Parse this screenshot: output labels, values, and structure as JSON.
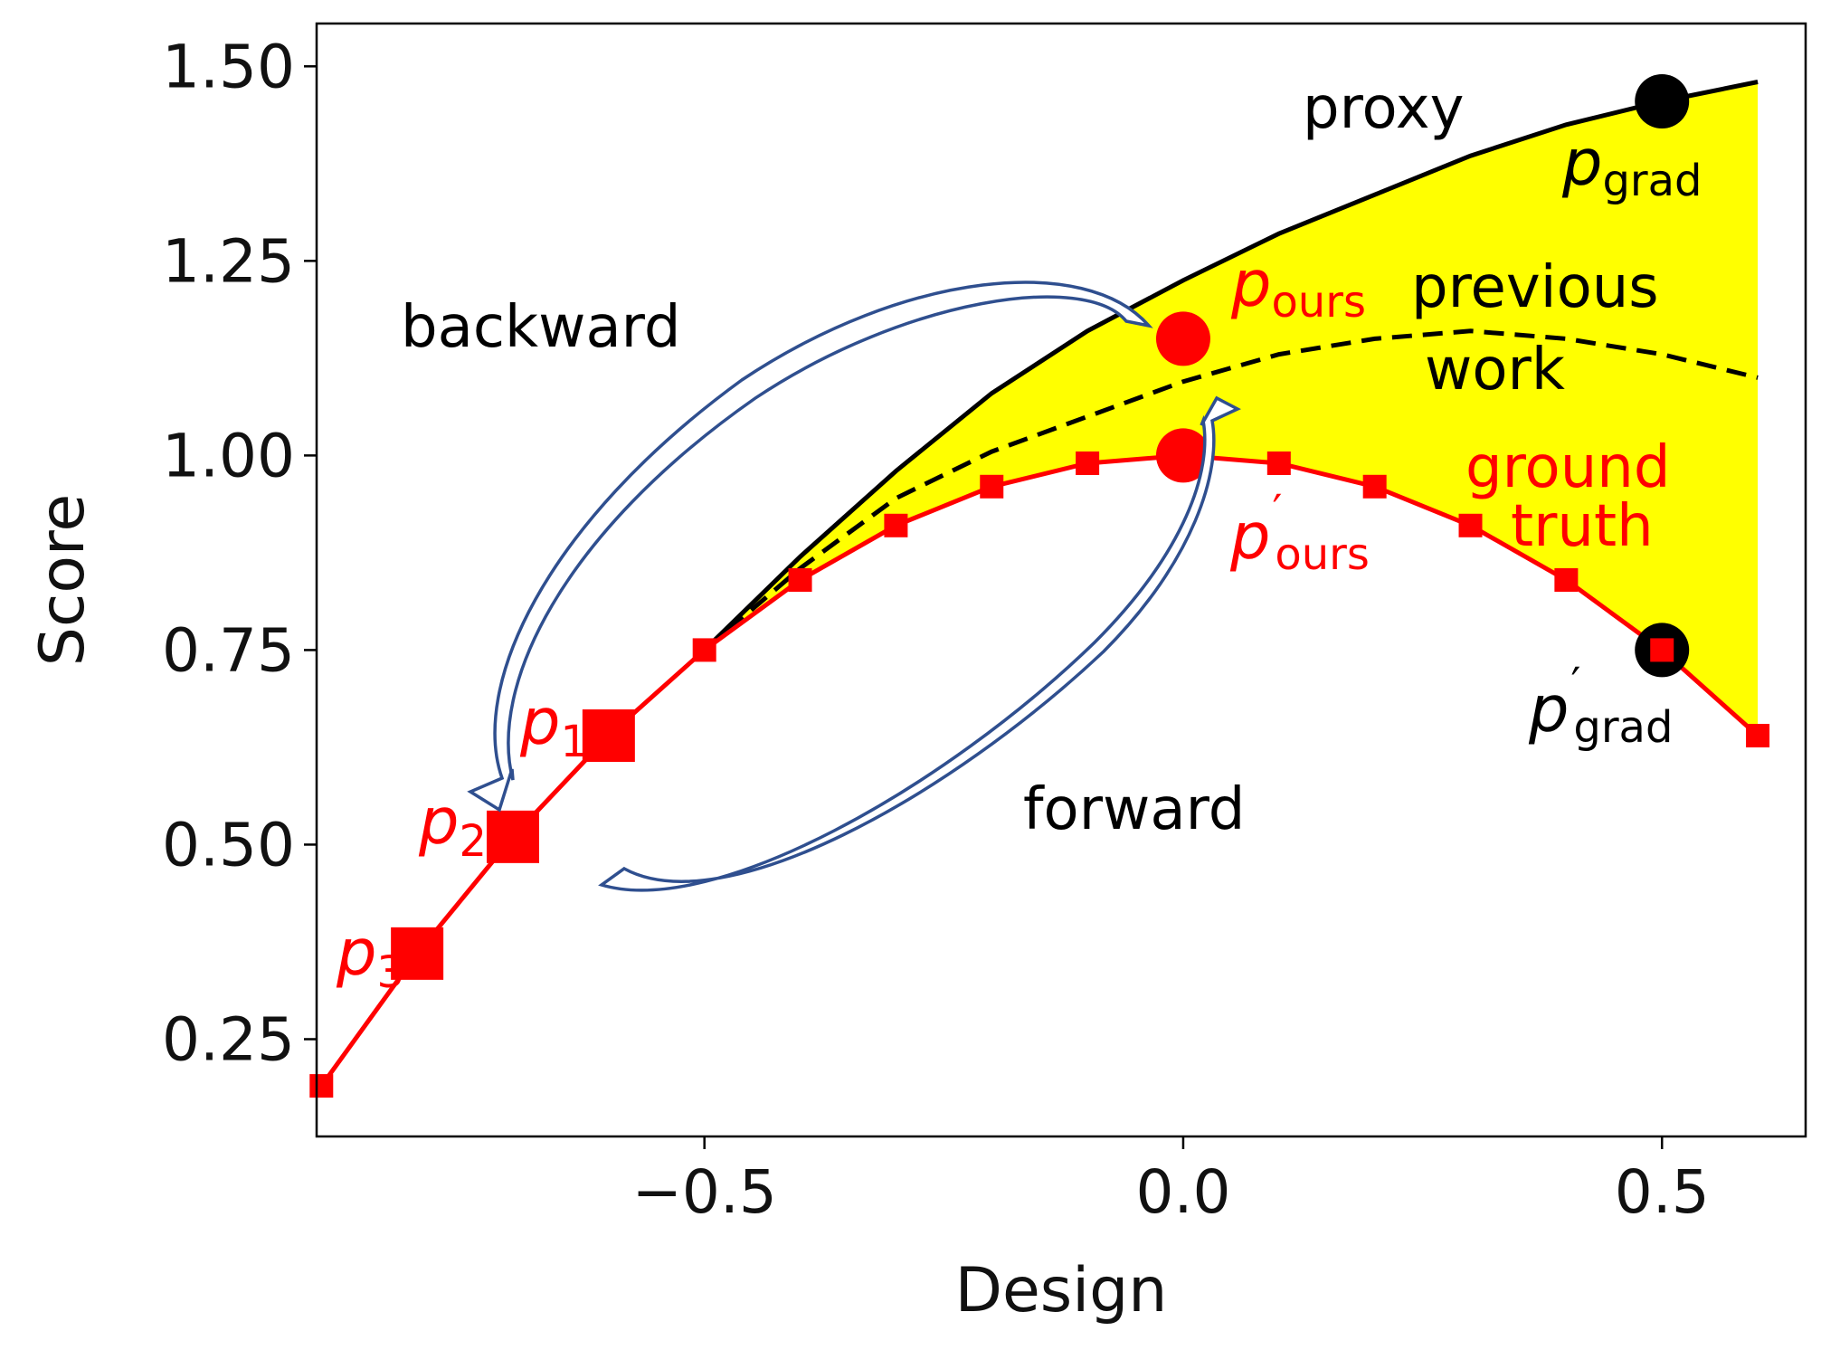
{
  "chart_data": {
    "type": "line",
    "xlabel": "Design",
    "ylabel": "Score",
    "xlim": [
      -0.905,
      0.65
    ],
    "ylim": [
      0.125,
      1.555
    ],
    "xticks": [
      {
        "value": -0.5,
        "label": "−0.5"
      },
      {
        "value": 0.0,
        "label": "0.0"
      },
      {
        "value": 0.5,
        "label": "0.5"
      }
    ],
    "yticks": [
      {
        "value": 0.25,
        "label": "0.25"
      },
      {
        "value": 0.5,
        "label": "0.50"
      },
      {
        "value": 0.75,
        "label": "0.75"
      },
      {
        "value": 1.0,
        "label": "1.00"
      },
      {
        "value": 1.25,
        "label": "1.25"
      },
      {
        "value": 1.5,
        "label": "1.50"
      }
    ],
    "series": [
      {
        "name": "proxy",
        "style": "solid",
        "color": "#000000",
        "points": [
          [
            -0.5,
            0.75
          ],
          [
            -0.4,
            0.87
          ],
          [
            -0.3,
            0.98
          ],
          [
            -0.2,
            1.08
          ],
          [
            -0.1,
            1.16
          ],
          [
            0.0,
            1.225
          ],
          [
            0.1,
            1.285
          ],
          [
            0.2,
            1.335
          ],
          [
            0.3,
            1.385
          ],
          [
            0.4,
            1.425
          ],
          [
            0.5,
            1.455
          ],
          [
            0.6,
            1.48
          ]
        ]
      },
      {
        "name": "previous work",
        "style": "dashed",
        "color": "#000000",
        "points": [
          [
            -0.5,
            0.75
          ],
          [
            -0.4,
            0.855
          ],
          [
            -0.3,
            0.945
          ],
          [
            -0.2,
            1.005
          ],
          [
            -0.1,
            1.05
          ],
          [
            0.0,
            1.095
          ],
          [
            0.1,
            1.13
          ],
          [
            0.2,
            1.15
          ],
          [
            0.3,
            1.16
          ],
          [
            0.4,
            1.15
          ],
          [
            0.5,
            1.13
          ],
          [
            0.6,
            1.1
          ]
        ]
      },
      {
        "name": "ground truth",
        "style": "solid-with-square-markers",
        "color": "#ff0000",
        "points": [
          [
            -0.9,
            0.19
          ],
          [
            -0.8,
            0.36
          ],
          [
            -0.7,
            0.51
          ],
          [
            -0.6,
            0.64
          ],
          [
            -0.5,
            0.75
          ],
          [
            -0.4,
            0.84
          ],
          [
            -0.3,
            0.91
          ],
          [
            -0.2,
            0.96
          ],
          [
            -0.1,
            0.99
          ],
          [
            0.0,
            1.0
          ],
          [
            0.1,
            0.99
          ],
          [
            0.2,
            0.96
          ],
          [
            0.3,
            0.91
          ],
          [
            0.4,
            0.84
          ],
          [
            0.5,
            0.75
          ],
          [
            0.6,
            0.64
          ]
        ],
        "large_marker_x": [
          -0.8,
          -0.7,
          -0.6
        ]
      }
    ],
    "fill_between": {
      "upper": "proxy",
      "lower": "ground truth",
      "x_range": [
        -0.5,
        0.6
      ],
      "color": "#ffff00"
    },
    "points": [
      {
        "name": "p_grad",
        "x": 0.5,
        "y": 1.455,
        "color": "#000000"
      },
      {
        "name": "p_grad_prime",
        "x": 0.5,
        "y": 0.75,
        "color": "#000000"
      },
      {
        "name": "p_ours",
        "x": 0.0,
        "y": 1.15,
        "color": "#ff0000"
      },
      {
        "name": "p_ours_prime",
        "x": 0.0,
        "y": 1.0,
        "color": "#ff0000"
      }
    ],
    "annotations": {
      "proxy": "proxy",
      "previous_work": [
        "previous",
        "work"
      ],
      "ground_truth": [
        "ground",
        "truth"
      ],
      "backward": "backward",
      "forward": "forward",
      "p_grad": {
        "base": "p",
        "sub": "grad"
      },
      "p_grad_prime": {
        "base": "p",
        "prime": "′",
        "sub": "grad"
      },
      "p_ours": {
        "base": "p",
        "sub": "ours"
      },
      "p_ours_prime": {
        "base": "p",
        "prime": "′",
        "sub": "ours"
      },
      "p1": {
        "base": "p",
        "sub": "1"
      },
      "p2": {
        "base": "p",
        "sub": "2"
      },
      "p3": {
        "base": "p",
        "sub": "3"
      }
    },
    "colors": {
      "red": "#ff0000",
      "black": "#000000",
      "fill": "#ffff00",
      "arrow": "#2f4f8f"
    }
  }
}
